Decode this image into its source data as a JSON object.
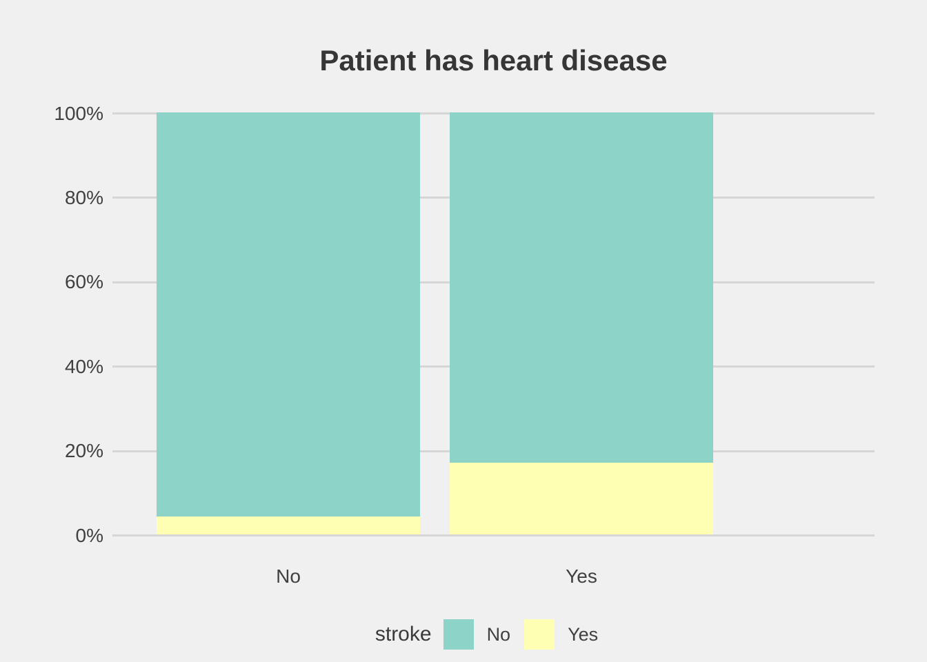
{
  "figure": {
    "background_color": "#F0F0F0",
    "panel_background_color": "#F0F0F0",
    "gridline_color": "#D6D6D6",
    "title_color": "#363636",
    "axis_text_color": "#404040"
  },
  "chart_data": {
    "type": "bar",
    "subtype": "100-percent-stacked-vertical",
    "title": "Patient has heart disease",
    "xlabel": "",
    "ylabel": "",
    "categories": [
      "No",
      "Yes"
    ],
    "series": [
      {
        "name": "No",
        "color": "#8DD3C7",
        "values": [
          95.8,
          83.0
        ]
      },
      {
        "name": "Yes",
        "color": "#FFFFB3",
        "values": [
          4.2,
          17.0
        ]
      }
    ],
    "stack_order_bottom_to_top": [
      "Yes",
      "No"
    ],
    "ylim": [
      0,
      100
    ],
    "ytick_values": [
      0,
      20,
      40,
      60,
      80,
      100
    ],
    "ytick_labels": [
      "0%",
      "20%",
      "40%",
      "60%",
      "80%",
      "100%"
    ],
    "grid": "horizontal-major-only",
    "legend": {
      "title": "stroke",
      "position": "bottom",
      "entries": [
        {
          "label": "No",
          "color": "#8DD3C7"
        },
        {
          "label": "Yes",
          "color": "#FFFFB3"
        }
      ]
    }
  }
}
